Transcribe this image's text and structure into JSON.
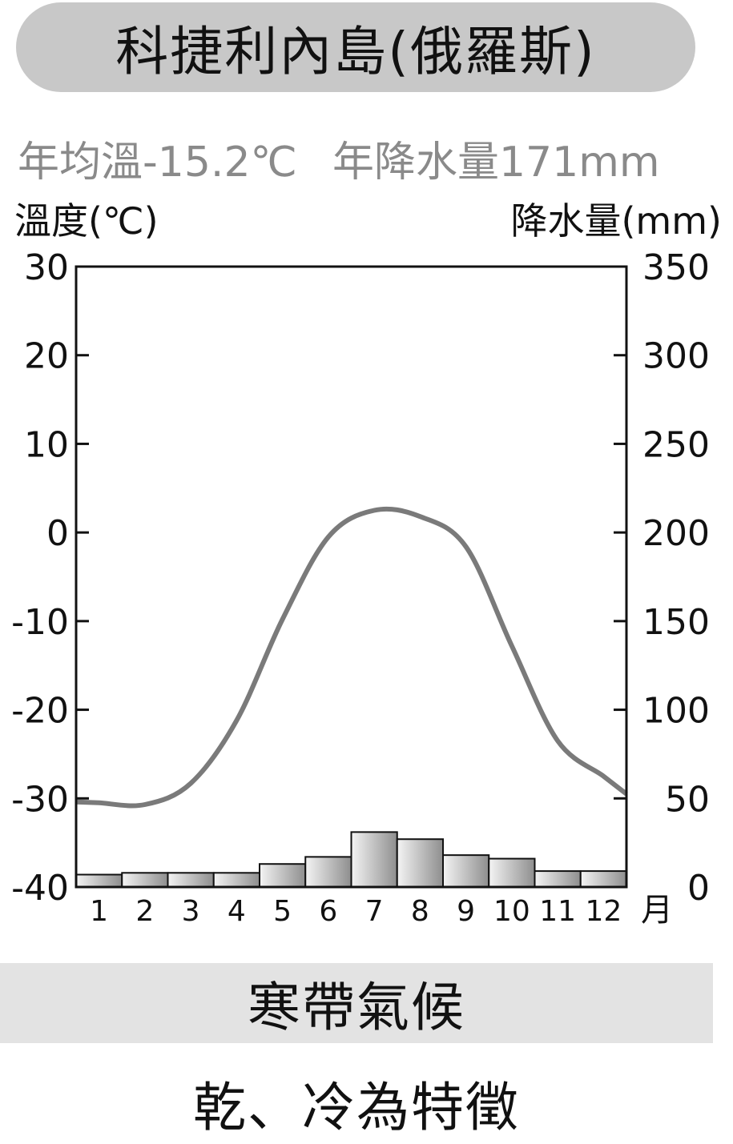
{
  "title": "科捷利內島(俄羅斯)",
  "stats": {
    "annual_temp": "年均溫-15.2℃",
    "annual_precip": "年降水量171mm"
  },
  "axis_labels": {
    "left": "溫度(℃)",
    "right": "降水量(mm)",
    "month_unit": "月"
  },
  "climate_type": "寒帶氣候",
  "feature_text": "乾、冷為特徵",
  "colors": {
    "temp_line": "#7a7a7a",
    "bar_light": "#f4f4f4",
    "bar_dark": "#8e8e8e",
    "title_bg": "#c8c8c8",
    "band_bg": "#e3e3e3"
  },
  "chart_data": {
    "type": "bar+line",
    "categories": [
      "1",
      "2",
      "3",
      "4",
      "5",
      "6",
      "7",
      "8",
      "9",
      "10",
      "11",
      "12"
    ],
    "temperature": {
      "unit": "°C",
      "ylim": [
        -40,
        30
      ],
      "ticks": [
        "30",
        "20",
        "10",
        "0",
        "-10",
        "-20",
        "-30",
        "-40"
      ],
      "values": [
        -30.5,
        -30.7,
        -28.3,
        -21.2,
        -9.8,
        -0.5,
        2.5,
        1.8,
        -1.6,
        -12.8,
        -23.5,
        -27.5
      ]
    },
    "precipitation": {
      "unit": "mm",
      "ylim": [
        0,
        350
      ],
      "ticks": [
        "350",
        "300",
        "250",
        "200",
        "150",
        "100",
        "50",
        "0"
      ],
      "values": [
        7,
        8,
        8,
        8,
        13,
        17,
        31,
        27,
        18,
        16,
        9,
        9
      ]
    }
  }
}
